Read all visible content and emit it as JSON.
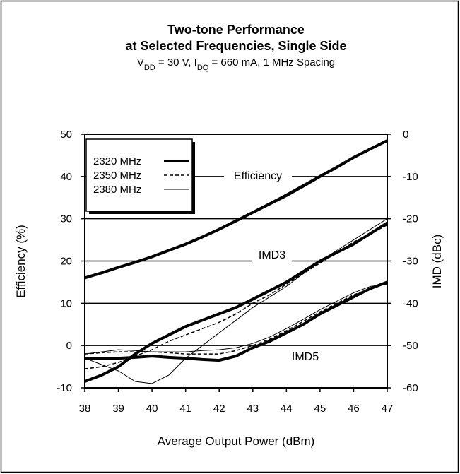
{
  "chart_data": {
    "type": "line",
    "title": [
      "Two-tone Performance",
      "at Selected Frequencies, Single Side"
    ],
    "subtitle": [
      {
        "text": "V"
      },
      {
        "text": "DD",
        "sub": true
      },
      {
        "text": " = 30 V, I"
      },
      {
        "text": "DQ",
        "sub": true
      },
      {
        "text": " = 660 mA, 1 MHz Spacing"
      }
    ],
    "x_label": "Average Output Power (dBm)",
    "y_label": "Efficiency (%)",
    "y2_label": "IMD (dBc)",
    "annotations": [
      "Efficiency",
      "IMD3",
      "IMD5"
    ],
    "x": [
      38,
      38.5,
      39,
      39.5,
      40,
      40.5,
      41,
      41.5,
      42,
      42.5,
      43,
      43.5,
      44,
      44.5,
      45,
      45.5,
      46,
      46.5,
      47
    ],
    "xlim": [
      38,
      47
    ],
    "xticks": [
      38,
      39,
      40,
      41,
      42,
      43,
      44,
      45,
      46,
      47
    ],
    "ylim": [
      -10,
      50
    ],
    "yticks": [
      -10,
      0,
      10,
      20,
      30,
      40,
      50
    ],
    "y2lim": [
      -60,
      0
    ],
    "y2ticks": [
      -60,
      -50,
      -40,
      -30,
      -20,
      -10,
      0
    ],
    "grid": true,
    "series": [
      {
        "name": "2320 MHz",
        "color": "#000000",
        "width": 4,
        "dash": "none",
        "efficiency": [
          16,
          17.2,
          18.5,
          19.7,
          21,
          22.5,
          24,
          25.7,
          27.5,
          29.5,
          31.5,
          33.5,
          35.5,
          37.7,
          40,
          42.2,
          44.5,
          46.5,
          48.5
        ],
        "imd3": [
          -58.5,
          -57,
          -55,
          -52,
          -49.5,
          -47.5,
          -45.5,
          -44,
          -42.5,
          -41,
          -39,
          -37,
          -35,
          -32.5,
          -30,
          -28,
          -26,
          -23.5,
          -21
        ],
        "imd5": [
          -53,
          -53,
          -53,
          -52.8,
          -52.5,
          -52.8,
          -53,
          -53.3,
          -53.5,
          -52.5,
          -50.5,
          -49,
          -47,
          -45,
          -42.5,
          -40.5,
          -38.5,
          -36.5,
          -35
        ]
      },
      {
        "name": "2350 MHz",
        "color": "#000000",
        "width": 1.5,
        "dash": "5 3",
        "efficiency": [
          16,
          17.2,
          18.4,
          19.7,
          21,
          22.4,
          23.9,
          25.6,
          27.4,
          29.3,
          31.3,
          33.3,
          35.4,
          37.6,
          39.9,
          42.1,
          44.3,
          46.4,
          48.3
        ],
        "imd3": [
          -55.5,
          -55,
          -54,
          -52.5,
          -51,
          -49,
          -47.5,
          -46,
          -44.5,
          -42.5,
          -40,
          -38,
          -35.5,
          -33,
          -30.5,
          -28,
          -25.5,
          -23.5,
          -21.5
        ],
        "imd5": [
          -52,
          -51.7,
          -51.5,
          -51.5,
          -51.5,
          -51.7,
          -52,
          -52,
          -52,
          -51.2,
          -50,
          -48.5,
          -46.5,
          -44.3,
          -42,
          -40,
          -38,
          -36.5,
          -35
        ]
      },
      {
        "name": "2380 MHz",
        "color": "#000000",
        "width": 1,
        "dash": "none",
        "efficiency": [
          16.2,
          17.4,
          18.6,
          19.9,
          21.2,
          22.7,
          24.2,
          25.9,
          27.7,
          29.7,
          31.7,
          33.8,
          35.9,
          38.1,
          40.3,
          42.5,
          44.7,
          46.7,
          48.7
        ],
        "imd3": [
          -53,
          -54.5,
          -56,
          -58.5,
          -59,
          -57,
          -53,
          -50,
          -47,
          -44,
          -41,
          -38.5,
          -36,
          -33,
          -30,
          -27.5,
          -25,
          -22.5,
          -20
        ],
        "imd5": [
          -52,
          -51.5,
          -51,
          -51.2,
          -51.5,
          -51.5,
          -51.5,
          -51.2,
          -51,
          -50.5,
          -49.5,
          -48,
          -46,
          -43.8,
          -41.5,
          -39.5,
          -37.5,
          -36,
          -35.5
        ]
      }
    ]
  }
}
